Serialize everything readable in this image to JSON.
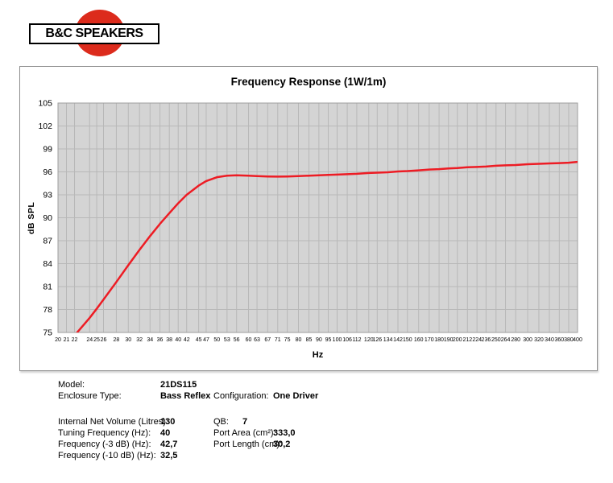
{
  "logo": {
    "text": "B&C SPEAKERS",
    "circle_color": "#dc2b1c"
  },
  "chart_data": {
    "type": "line",
    "title": "Frequency Response (1W/1m)",
    "xlabel": "Hz",
    "ylabel": "dB SPL",
    "x_scale": "log",
    "xlim": [
      20,
      400
    ],
    "ylim": [
      75,
      105
    ],
    "grid": true,
    "legend": "none",
    "style": {
      "plot_bg": "#d4d4d4",
      "grid_color": "#b8b8b8",
      "border_color": "#9e9e9e",
      "tick_color": "#000000"
    },
    "y_ticks": [
      105,
      102,
      99,
      96,
      93,
      90,
      87,
      84,
      81,
      78,
      75
    ],
    "x_ticks": [
      20,
      21,
      22,
      24,
      25,
      26,
      28,
      30,
      32,
      34,
      36,
      38,
      40,
      42,
      45,
      47,
      50,
      53,
      56,
      60,
      63,
      67,
      71,
      75,
      80,
      85,
      90,
      95,
      100,
      106,
      112,
      120,
      126,
      134,
      142,
      150,
      160,
      170,
      180,
      190,
      200,
      212,
      224,
      236,
      250,
      264,
      280,
      300,
      320,
      340,
      360,
      380,
      400
    ],
    "series": [
      {
        "name": "frequency-response",
        "color": "#ed1c24",
        "x": [
          20,
          21,
          22,
          24,
          25,
          26,
          28,
          30,
          32,
          34,
          36,
          38,
          40,
          42,
          45,
          47,
          50,
          53,
          56,
          60,
          63,
          67,
          71,
          75,
          80,
          85,
          90,
          95,
          100,
          106,
          112,
          120,
          126,
          134,
          142,
          150,
          160,
          170,
          180,
          190,
          200,
          212,
          224,
          236,
          250,
          264,
          280,
          300,
          320,
          340,
          360,
          380,
          400
        ],
        "y": [
          72.0,
          73.4,
          74.6,
          76.9,
          78.1,
          79.3,
          81.6,
          83.8,
          85.8,
          87.6,
          89.2,
          90.6,
          91.9,
          93.0,
          94.2,
          94.8,
          95.3,
          95.5,
          95.55,
          95.5,
          95.45,
          95.4,
          95.38,
          95.4,
          95.45,
          95.5,
          95.55,
          95.6,
          95.65,
          95.7,
          95.75,
          95.85,
          95.9,
          95.95,
          96.05,
          96.1,
          96.2,
          96.3,
          96.35,
          96.45,
          96.5,
          96.6,
          96.65,
          96.7,
          96.8,
          96.85,
          96.9,
          97.0,
          97.05,
          97.1,
          97.15,
          97.2,
          97.3
        ]
      }
    ]
  },
  "specs": {
    "left": [
      {
        "label": "Model:",
        "value": "21DS115"
      },
      {
        "label": "Enclosure Type:",
        "value": "Bass Reflex"
      },
      {
        "label": "Internal Net Volume (Litres):",
        "value": "130"
      },
      {
        "label": "Tuning Frequency (Hz):",
        "value": "40"
      },
      {
        "label": "Frequency (-3 dB) (Hz):",
        "value": "42,7"
      },
      {
        "label": "Frequency (-10 dB) (Hz):",
        "value": "32,5"
      }
    ],
    "right": [
      {
        "label": "Configuration:",
        "value": "One Driver"
      },
      {
        "label": "QB:",
        "value": "7"
      },
      {
        "label": "Port Area (cm²):",
        "value": "333,0"
      },
      {
        "label": "Port Length (cm):",
        "value": "30,2"
      }
    ]
  }
}
